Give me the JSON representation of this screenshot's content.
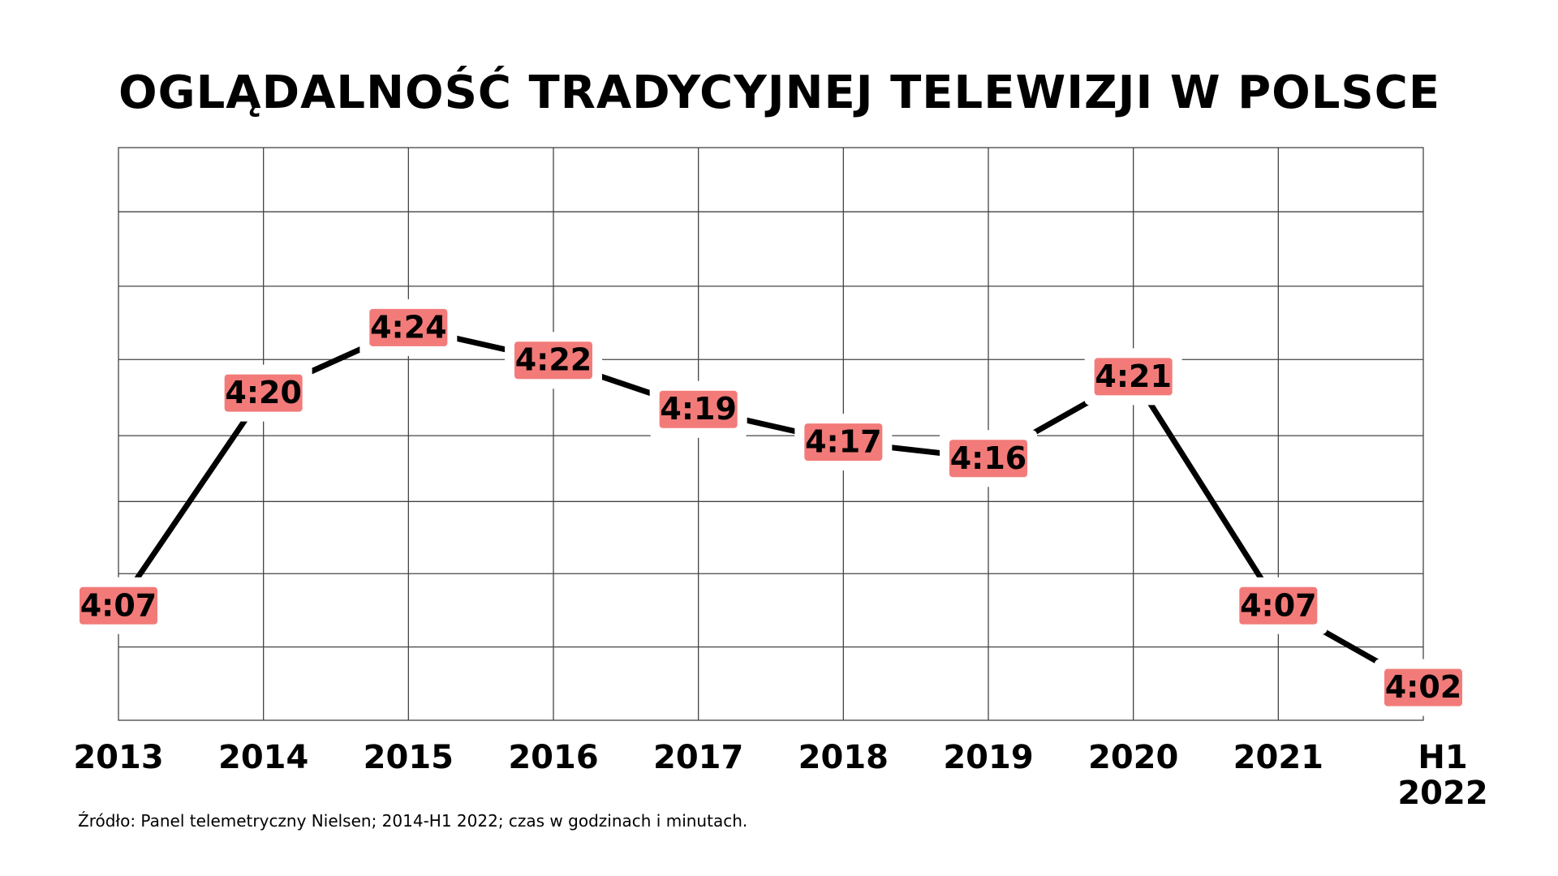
{
  "chart_data": {
    "type": "line",
    "title": "OGLĄDALNOŚĆ TRADYCYJNEJ TELEWIZJI W POLSCE",
    "categories": [
      "2013",
      "2014",
      "2015",
      "2016",
      "2017",
      "2018",
      "2019",
      "2020",
      "2021",
      "H1\n2022"
    ],
    "values": [
      247,
      260,
      264,
      262,
      259,
      257,
      256,
      261,
      247,
      242
    ],
    "value_labels": [
      "4:07",
      "4:20",
      "4:24",
      "4:22",
      "4:19",
      "4:17",
      "4:16",
      "4:21",
      "4:07",
      "4:02"
    ],
    "color": "#000000",
    "label_color": "#f27b79",
    "ylim": [
      240,
      275
    ],
    "grid": true,
    "source": "Źródło: Panel telemetryczny Nielsen; 2014-H1 2022; czas w godzinach i minutach."
  }
}
